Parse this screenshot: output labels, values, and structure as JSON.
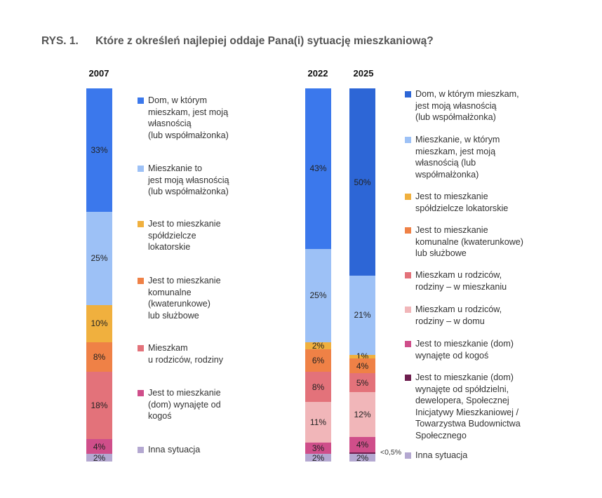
{
  "figure": {
    "label": "RYS. 1.",
    "title": "Które z określeń najlepiej oddaje Pana(i) sytuację mieszkaniową?"
  },
  "chart_data": [
    {
      "type": "bar",
      "stacked": true,
      "unit": "%",
      "categories": [
        "2007"
      ],
      "series": [
        {
          "name": "Dom, w którym mieszkam, jest moją własnością (lub współmałżonka)",
          "values": [
            33
          ],
          "color": "#3b78ec",
          "value_label": "33%"
        },
        {
          "name": "Mieszkanie to jest moją własnością (lub współmałżonka)",
          "values": [
            25
          ],
          "color": "#9dc1f6",
          "value_label": "25%"
        },
        {
          "name": "Jest to mieszkanie spółdzielcze lokatorskie",
          "values": [
            10
          ],
          "color": "#f0b03e",
          "value_label": "10%"
        },
        {
          "name": "Jest to mieszkanie komunalne (kwaterunkowe) lub służbowe",
          "values": [
            8
          ],
          "color": "#ef8146",
          "value_label": "8%"
        },
        {
          "name": "Mieszkam u rodziców, rodziny",
          "values": [
            18
          ],
          "color": "#e3727a",
          "value_label": "18%"
        },
        {
          "name": "Jest to mieszkanie (dom) wynajęte od kogoś",
          "values": [
            4
          ],
          "color": "#cf4e8a",
          "value_label": "4%"
        },
        {
          "name": "Inna sytuacja",
          "values": [
            2
          ],
          "color": "#b4a8d1",
          "value_label": "2%"
        }
      ],
      "legend": [
        {
          "lines": [
            "Dom, w którym",
            "mieszkam, jest moją",
            "własnością",
            "(lub współmałżonka)"
          ],
          "color": "#3b78ec"
        },
        {
          "lines": [
            "Mieszkanie to",
            "jest moją własnością",
            "(lub współmałżonka)"
          ],
          "color": "#9dc1f6"
        },
        {
          "lines": [
            "Jest to mieszkanie",
            "spółdzielcze",
            "lokatorskie"
          ],
          "color": "#f0b03e"
        },
        {
          "lines": [
            "Jest to mieszkanie",
            "komunalne",
            "(kwaterunkowe)",
            "lub służbowe"
          ],
          "color": "#ef8146"
        },
        {
          "lines": [
            "Mieszkam",
            "u rodziców, rodziny"
          ],
          "color": "#e3727a"
        },
        {
          "lines": [
            "Jest to mieszkanie",
            "(dom) wynajęte od",
            "kogoś"
          ],
          "color": "#cf4e8a"
        },
        {
          "lines": [
            "Inna sytuacja"
          ],
          "color": "#b4a8d1"
        }
      ]
    },
    {
      "type": "bar",
      "stacked": true,
      "unit": "%",
      "categories": [
        "2022",
        "2025"
      ],
      "series": [
        {
          "name": "Dom, w którym mieszkam, jest moją własnością (lub współmałżonka)",
          "values": [
            43,
            50
          ],
          "labels": [
            "43%",
            "50%"
          ],
          "color_2022": "#3b78ec",
          "color": "#2d66d6"
        },
        {
          "name": "Mieszkanie, w którym mieszkam, jest moją własnością (lub współmałżonka)",
          "values": [
            25,
            21
          ],
          "labels": [
            "25%",
            "21%"
          ],
          "color": "#9dc1f6"
        },
        {
          "name": "Jest to mieszkanie spółdzielcze lokatorskie",
          "values": [
            2,
            1
          ],
          "labels": [
            "2%",
            "1%"
          ],
          "color": "#f0b03e"
        },
        {
          "name": "Jest to mieszkanie komunalne (kwaterunkowe) lub służbowe",
          "values": [
            6,
            4
          ],
          "labels": [
            "6%",
            "4%"
          ],
          "color": "#ef8146"
        },
        {
          "name": "Mieszkam u rodziców, rodziny – w mieszkaniu",
          "values": [
            8,
            5
          ],
          "labels": [
            "8%",
            "5%"
          ],
          "color": "#e3727a"
        },
        {
          "name": "Mieszkam u rodziców, rodziny – w domu",
          "values": [
            11,
            12
          ],
          "labels": [
            "11%",
            "12%"
          ],
          "color": "#f1b6b9"
        },
        {
          "name": "Jest to mieszkanie (dom) wynajęte od kogoś",
          "values": [
            3,
            4
          ],
          "labels": [
            "3%",
            "4%"
          ],
          "color": "#cf4e8a"
        },
        {
          "name": "Jest to mieszkanie (dom) wynajęte od spółdzielni, dewelopera, Społecznej Inicjatywy Mieszkaniowej / Towarzystwa Budownictwa Społecznego",
          "values": [
            0,
            0.5
          ],
          "labels": [
            "",
            ""
          ],
          "color": "#6e1f4f"
        },
        {
          "name": "Inna sytuacja",
          "values": [
            2,
            2
          ],
          "labels": [
            "2%",
            "2%"
          ],
          "color": "#b4a8d1"
        }
      ],
      "small_value_note": "<0,5%",
      "legend": [
        {
          "lines": [
            "Dom, w którym mieszkam,",
            "jest moją własnością",
            "(lub współmałżonka)"
          ],
          "color": "#2d66d6"
        },
        {
          "lines": [
            "Mieszkanie, w którym",
            "mieszkam, jest moją",
            "własnością (lub",
            "współmałżonka)"
          ],
          "color": "#9dc1f6"
        },
        {
          "lines": [
            "Jest to mieszkanie",
            "spółdzielcze lokatorskie"
          ],
          "color": "#f0b03e"
        },
        {
          "lines": [
            "Jest to mieszkanie",
            "komunalne (kwaterunkowe)",
            "lub służbowe"
          ],
          "color": "#ef8146"
        },
        {
          "lines": [
            "Mieszkam u rodziców,",
            "rodziny – w mieszkaniu"
          ],
          "color": "#e3727a"
        },
        {
          "lines": [
            "Mieszkam u rodziców,",
            "rodziny – w domu"
          ],
          "color": "#f1b6b9"
        },
        {
          "lines": [
            "Jest to mieszkanie (dom)",
            "wynajęte od kogoś"
          ],
          "color": "#cf4e8a"
        },
        {
          "lines": [
            "Jest to mieszkanie (dom)",
            "wynajęte od spółdzielni,",
            "dewelopera, Społecznej",
            "Inicjatywy Mieszkaniowej /",
            "Towarzystwa Budownictwa",
            "Społecznego"
          ],
          "color": "#6e1f4f"
        },
        {
          "lines": [
            "Inna sytuacja"
          ],
          "color": "#b4a8d1"
        }
      ]
    }
  ]
}
